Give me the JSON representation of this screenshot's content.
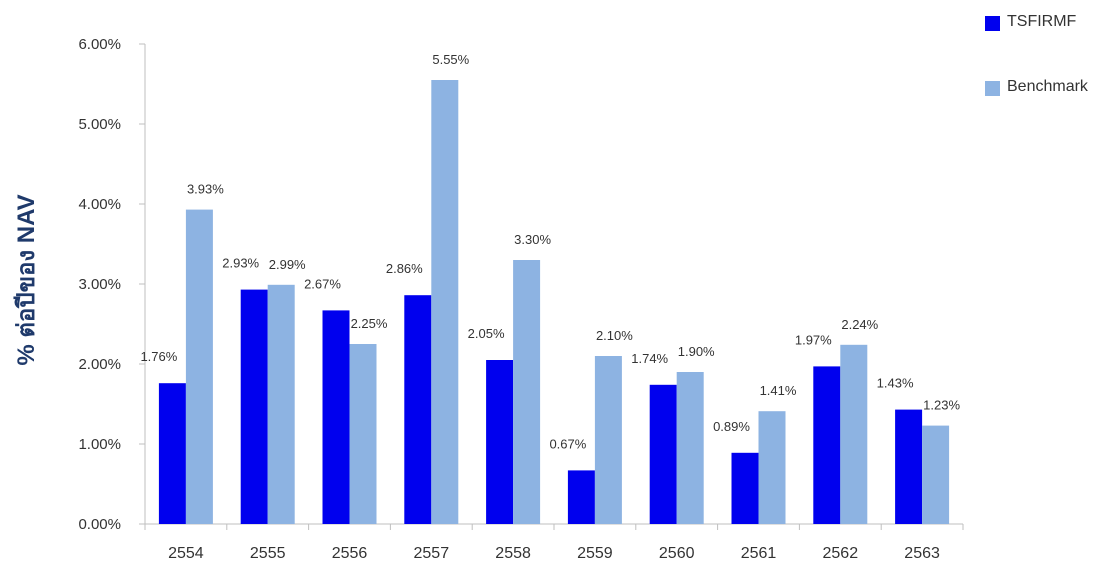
{
  "chart_data": {
    "type": "bar",
    "title": "",
    "xlabel": "",
    "ylabel": "% ต่อปีของ NAV",
    "ylim": [
      0,
      6
    ],
    "yticks": [
      "0.00%",
      "1.00%",
      "2.00%",
      "3.00%",
      "4.00%",
      "5.00%",
      "6.00%"
    ],
    "categories": [
      "2554",
      "2555",
      "2556",
      "2557",
      "2558",
      "2559",
      "2560",
      "2561",
      "2562",
      "2563"
    ],
    "legend_position": "top-right",
    "grid": false,
    "series": [
      {
        "name": "TSFIRMF",
        "color": "#0000ee",
        "values": [
          1.76,
          2.93,
          2.67,
          2.86,
          2.05,
          0.67,
          1.74,
          0.89,
          1.97,
          1.43
        ],
        "labels": [
          "1.76%",
          "2.93%",
          "2.67%",
          "2.86%",
          "2.05%",
          "0.67%",
          "1.74%",
          "0.89%",
          "1.97%",
          "1.43%"
        ]
      },
      {
        "name": "Benchmark",
        "color": "#8db3e2",
        "values": [
          3.93,
          2.99,
          2.25,
          5.55,
          3.3,
          2.1,
          1.9,
          1.41,
          2.24,
          1.23
        ],
        "labels": [
          "3.93%",
          "2.99%",
          "2.25%",
          "5.55%",
          "3.30%",
          "2.10%",
          "1.90%",
          "1.41%",
          "2.24%",
          "1.23%"
        ]
      }
    ]
  }
}
